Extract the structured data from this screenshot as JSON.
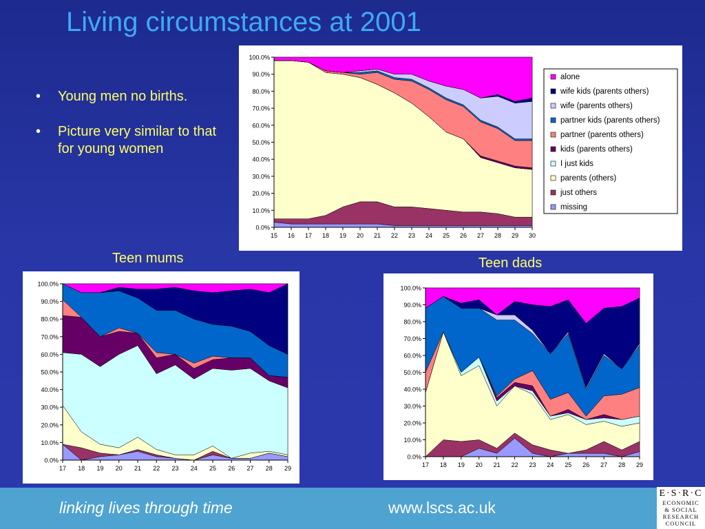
{
  "slide": {
    "title": "Living circumstances at 2001",
    "bullets": [
      "Young men no births.",
      "Picture very similar to that for  young women"
    ],
    "caption_mums": "Teen mums",
    "caption_dads": "Teen dads",
    "footer_tagline": "linking lives through time",
    "footer_url": "www.lscs.ac.uk",
    "logo_line1": "E·S·R·C",
    "logo_lines": [
      "ECONOMIC",
      "& SOCIAL",
      "RESEARCH",
      "COUNCIL"
    ],
    "bullet_marker": "•"
  },
  "chart_data": [
    {
      "id": "main",
      "type": "area",
      "stacked": true,
      "x": [
        15,
        16,
        17,
        18,
        19,
        20,
        21,
        22,
        23,
        24,
        25,
        26,
        27,
        28,
        29,
        30
      ],
      "ylim": [
        0,
        100
      ],
      "yticks": [
        "0.0%",
        "10.0%",
        "20.0%",
        "30.0%",
        "40.0%",
        "50.0%",
        "60.0%",
        "70.0%",
        "80.0%",
        "90.0%",
        "100.0%"
      ],
      "legend_position": "right",
      "series": [
        {
          "name": "missing",
          "color": "#9999ff",
          "values": [
            3,
            2,
            2,
            2,
            2,
            2,
            2,
            1,
            1,
            1,
            1,
            1,
            1,
            1,
            1,
            1
          ]
        },
        {
          "name": "just others",
          "color": "#993366",
          "values": [
            2,
            3,
            3,
            5,
            10,
            13,
            13,
            11,
            11,
            10,
            9,
            8,
            8,
            7,
            5,
            5
          ]
        },
        {
          "name": "parents (others)",
          "color": "#ffffcc",
          "values": [
            93,
            93,
            92,
            84,
            78,
            73,
            69,
            67,
            61,
            54,
            46,
            43,
            32,
            30,
            29,
            28
          ]
        },
        {
          "name": "I just kids",
          "color": "#ccffff",
          "values": [
            0,
            0,
            0,
            0,
            0,
            0,
            0,
            0,
            0,
            0,
            0,
            0,
            0,
            0,
            0,
            0
          ]
        },
        {
          "name": "kids (parents others)",
          "color": "#660066",
          "values": [
            0,
            0,
            0,
            0,
            0,
            0,
            0,
            0,
            0,
            0,
            0,
            0,
            1,
            1,
            1,
            1
          ]
        },
        {
          "name": "partner (parents others)",
          "color": "#ff8080",
          "values": [
            0,
            0,
            0,
            1,
            1,
            2,
            7,
            8,
            13,
            16,
            19,
            19,
            20,
            19,
            15,
            16
          ]
        },
        {
          "name": "partner kids (parents others)",
          "color": "#0066cc",
          "values": [
            0,
            0,
            0,
            0,
            0,
            1,
            1,
            1,
            1,
            1,
            1,
            1,
            1,
            1,
            1,
            1
          ]
        },
        {
          "name": "wife (parents others)",
          "color": "#ccccff",
          "values": [
            0,
            0,
            0,
            0,
            0,
            1,
            1,
            2,
            3,
            4,
            7,
            9,
            13,
            18,
            21,
            22
          ]
        },
        {
          "name": "wife kids (parents others)",
          "color": "#000080",
          "values": [
            0,
            0,
            0,
            0,
            0,
            0,
            0,
            0,
            0,
            0,
            0,
            0,
            0,
            1,
            1,
            2
          ]
        },
        {
          "name": "alone",
          "color": "#ff00ff",
          "values": [
            2,
            2,
            3,
            8,
            9,
            8,
            7,
            10,
            10,
            14,
            17,
            19,
            24,
            22,
            26,
            24
          ]
        }
      ]
    },
    {
      "id": "mums",
      "type": "area",
      "stacked": true,
      "x": [
        17,
        18,
        19,
        20,
        21,
        22,
        23,
        24,
        25,
        26,
        27,
        28,
        29
      ],
      "ylim": [
        0,
        100
      ],
      "yticks": [
        "0.0%",
        "10.0%",
        "20.0%",
        "30.0%",
        "40.0%",
        "50.0%",
        "60.0%",
        "70.0%",
        "80.0%",
        "90.0%",
        "100.0%"
      ],
      "series": [
        {
          "name": "missing",
          "color": "#9999ff",
          "values": [
            9,
            0,
            2,
            3,
            5,
            2,
            1,
            0,
            3,
            1,
            1,
            4,
            2
          ]
        },
        {
          "name": "just others",
          "color": "#993366",
          "values": [
            0,
            7,
            2,
            0,
            1,
            1,
            0,
            0,
            2,
            0,
            0,
            0,
            0
          ]
        },
        {
          "name": "parents (others)",
          "color": "#ffffcc",
          "values": [
            22,
            9,
            5,
            4,
            7,
            3,
            2,
            3,
            3,
            0,
            3,
            1,
            1
          ]
        },
        {
          "name": "I just kids",
          "color": "#ccffff",
          "values": [
            30,
            44,
            44,
            53,
            52,
            43,
            51,
            43,
            44,
            50,
            48,
            40,
            38
          ]
        },
        {
          "name": "kids (parents others)",
          "color": "#660066",
          "values": [
            21,
            21,
            17,
            13,
            7,
            9,
            6,
            6,
            5,
            7,
            6,
            3,
            6
          ]
        },
        {
          "name": "partner (parents others)",
          "color": "#ff8080",
          "values": [
            9,
            0,
            0,
            2,
            0,
            3,
            0,
            3,
            2,
            0,
            0,
            0,
            0
          ]
        },
        {
          "name": "partner kids (parents others)",
          "color": "#0066cc",
          "values": [
            9,
            14,
            25,
            21,
            20,
            24,
            25,
            25,
            18,
            18,
            15,
            17,
            13
          ]
        },
        {
          "name": "wife (parents others)",
          "color": "#ccccff",
          "values": [
            0,
            0,
            0,
            0,
            0,
            0,
            0,
            0,
            0,
            0,
            0,
            0,
            0
          ]
        },
        {
          "name": "wife kids (parents others)",
          "color": "#000080",
          "values": [
            0,
            0,
            0,
            2,
            5,
            12,
            13,
            16,
            18,
            20,
            24,
            30,
            40
          ]
        },
        {
          "name": "alone",
          "color": "#ff00ff",
          "values": [
            0,
            5,
            5,
            2,
            3,
            3,
            2,
            4,
            5,
            4,
            3,
            5,
            0
          ]
        }
      ]
    },
    {
      "id": "dads",
      "type": "area",
      "stacked": true,
      "x": [
        17,
        18,
        19,
        20,
        21,
        22,
        23,
        24,
        25,
        26,
        27,
        28,
        29
      ],
      "ylim": [
        0,
        100
      ],
      "yticks": [
        "0.0%",
        "10.0%",
        "20.0%",
        "30.0%",
        "40.0%",
        "50.0%",
        "60.0%",
        "70.0%",
        "80.0%",
        "90.0%",
        "100.0%"
      ],
      "series": [
        {
          "name": "missing",
          "color": "#9999ff",
          "values": [
            0,
            0,
            0,
            5,
            2,
            11,
            2,
            0,
            2,
            2,
            2,
            0,
            3
          ]
        },
        {
          "name": "just others",
          "color": "#993366",
          "values": [
            0,
            10,
            9,
            5,
            3,
            3,
            5,
            4,
            0,
            2,
            7,
            4,
            6
          ]
        },
        {
          "name": "parents (others)",
          "color": "#ffffcc",
          "values": [
            38,
            64,
            39,
            44,
            25,
            28,
            30,
            18,
            23,
            15,
            12,
            14,
            11
          ]
        },
        {
          "name": "I just kids",
          "color": "#ccffff",
          "values": [
            0,
            0,
            2,
            5,
            3,
            0,
            2,
            2,
            1,
            3,
            2,
            4,
            4
          ]
        },
        {
          "name": "kids (parents others)",
          "color": "#660066",
          "values": [
            0,
            0,
            0,
            0,
            2,
            2,
            3,
            0,
            2,
            0,
            2,
            0,
            0
          ]
        },
        {
          "name": "partner (parents others)",
          "color": "#ff8080",
          "values": [
            12,
            0,
            0,
            0,
            1,
            2,
            9,
            10,
            10,
            2,
            11,
            15,
            17
          ]
        },
        {
          "name": "partner kids (parents others)",
          "color": "#0066cc",
          "values": [
            38,
            21,
            38,
            29,
            45,
            35,
            22,
            27,
            35,
            16,
            24,
            15,
            25
          ]
        },
        {
          "name": "wife (parents others)",
          "color": "#ccccff",
          "values": [
            0,
            0,
            0,
            0,
            3,
            3,
            2,
            0,
            1,
            1,
            1,
            0,
            1
          ]
        },
        {
          "name": "wife kids (parents others)",
          "color": "#000080",
          "values": [
            0,
            0,
            3,
            5,
            0,
            8,
            15,
            28,
            19,
            38,
            27,
            37,
            27
          ]
        },
        {
          "name": "alone",
          "color": "#ff00ff",
          "values": [
            12,
            5,
            9,
            7,
            16,
            8,
            10,
            11,
            7,
            21,
            12,
            11,
            6
          ]
        }
      ]
    }
  ]
}
